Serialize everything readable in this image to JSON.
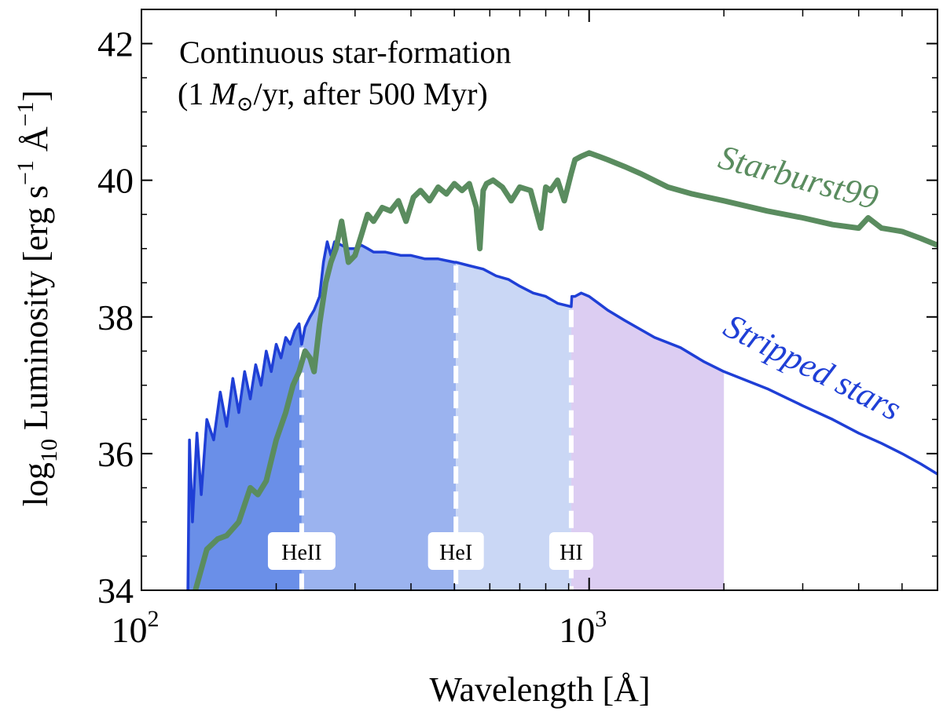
{
  "chart_data": {
    "type": "line",
    "title": "",
    "annotation": {
      "line1": "Continuous star-formation",
      "line2_prefix": "(1 ",
      "line2_msun": "M",
      "line2_sun_sub": "⊙",
      "line2_suffix": "/yr, after 500 Myr)"
    },
    "xlabel": "Wavelength [Å]",
    "ylabel_parts": {
      "main": "log",
      "sub": "10",
      "rest": " Luminosity [erg s",
      "sup1": "−1",
      "mid": " Å",
      "sup2": "−1",
      "end": "]"
    },
    "xscale": "log",
    "xlim": [
      100,
      6000
    ],
    "ylim": [
      34,
      42.5
    ],
    "yticks": [
      34,
      36,
      38,
      40,
      42
    ],
    "ytick_labels": [
      "34",
      "36",
      "38",
      "40",
      "42"
    ],
    "xticks_major": [
      100,
      1000
    ],
    "xtick_labels": [
      {
        "base": "10",
        "exp": "2"
      },
      {
        "base": "10",
        "exp": "3"
      }
    ],
    "ionization_edges": [
      {
        "name": "HeII",
        "wavelength": 228
      },
      {
        "name": "HeI",
        "wavelength": 504
      },
      {
        "name": "HI",
        "wavelength": 912
      }
    ],
    "shaded_bands": [
      {
        "from": 127,
        "to": 228,
        "color": "#6a8fe8"
      },
      {
        "from": 228,
        "to": 504,
        "color": "#9bb3ef"
      },
      {
        "from": 504,
        "to": 912,
        "color": "#cad7f5"
      },
      {
        "from": 912,
        "to": 2000,
        "color": "#dccdf2"
      }
    ],
    "series": [
      {
        "name": "Starburst99",
        "color": "#5a8c5f",
        "x": [
          127,
          132,
          140,
          148,
          155,
          165,
          175,
          182,
          190,
          200,
          210,
          218,
          225,
          232,
          238,
          243,
          250,
          258,
          265,
          272,
          280,
          290,
          300,
          310,
          320,
          330,
          345,
          360,
          375,
          390,
          405,
          420,
          440,
          460,
          480,
          500,
          520,
          540,
          560,
          570,
          580,
          590,
          610,
          640,
          670,
          700,
          740,
          780,
          800,
          820,
          850,
          880,
          912,
          930,
          960,
          1000,
          1050,
          1100,
          1200,
          1300,
          1500,
          1700,
          2000,
          2500,
          3000,
          3500,
          4000,
          4200,
          4500,
          5000,
          5500,
          6000
        ],
        "values": [
          33.6,
          34.0,
          34.6,
          34.75,
          34.8,
          35.0,
          35.5,
          35.4,
          35.6,
          36.2,
          36.6,
          37.0,
          37.2,
          37.5,
          37.4,
          37.2,
          37.9,
          38.5,
          38.8,
          39.0,
          39.4,
          38.8,
          38.9,
          39.2,
          39.5,
          39.4,
          39.6,
          39.55,
          39.7,
          39.4,
          39.75,
          39.85,
          39.7,
          39.9,
          39.8,
          39.95,
          39.85,
          39.95,
          39.6,
          39.0,
          39.85,
          39.95,
          40.0,
          39.9,
          39.7,
          39.9,
          39.85,
          39.3,
          39.9,
          39.85,
          40.0,
          39.7,
          40.1,
          40.3,
          40.35,
          40.4,
          40.35,
          40.3,
          40.2,
          40.1,
          39.9,
          39.8,
          39.7,
          39.55,
          39.45,
          39.35,
          39.3,
          39.45,
          39.3,
          39.25,
          39.15,
          39.05
        ]
      },
      {
        "name": "Stripped stars",
        "color": "#1f3fd6",
        "x": [
          127,
          128,
          130,
          133,
          136,
          140,
          145,
          150,
          155,
          160,
          165,
          170,
          175,
          180,
          185,
          190,
          195,
          200,
          205,
          210,
          215,
          220,
          225,
          228,
          232,
          238,
          243,
          250,
          255,
          260,
          265,
          270,
          280,
          290,
          300,
          310,
          320,
          330,
          350,
          380,
          400,
          430,
          460,
          500,
          504,
          540,
          580,
          620,
          660,
          700,
          750,
          800,
          850,
          912,
          915,
          930,
          960,
          1000,
          1100,
          1200,
          1400,
          1600,
          1800,
          2000,
          2500,
          3000,
          3500,
          4000,
          4500,
          5000,
          5500,
          6000
        ],
        "values": [
          34.0,
          36.2,
          35.0,
          36.3,
          35.4,
          36.5,
          36.2,
          36.9,
          36.4,
          37.1,
          36.6,
          37.2,
          36.8,
          37.3,
          37.0,
          37.5,
          37.2,
          37.6,
          37.4,
          37.7,
          37.6,
          37.8,
          37.9,
          37.6,
          37.85,
          38.0,
          38.1,
          38.3,
          38.8,
          39.1,
          38.9,
          39.1,
          39.05,
          39.0,
          39.0,
          39.05,
          39.0,
          38.95,
          38.95,
          38.9,
          38.9,
          38.85,
          38.85,
          38.8,
          38.8,
          38.75,
          38.7,
          38.6,
          38.55,
          38.45,
          38.35,
          38.3,
          38.2,
          38.15,
          38.3,
          38.3,
          38.35,
          38.3,
          38.1,
          37.95,
          37.7,
          37.55,
          37.35,
          37.2,
          36.95,
          36.7,
          36.5,
          36.3,
          36.15,
          36.0,
          35.85,
          35.7
        ]
      }
    ],
    "series_labels": {
      "starburst": "Starburst99",
      "stripped": "Stripped stars"
    }
  }
}
